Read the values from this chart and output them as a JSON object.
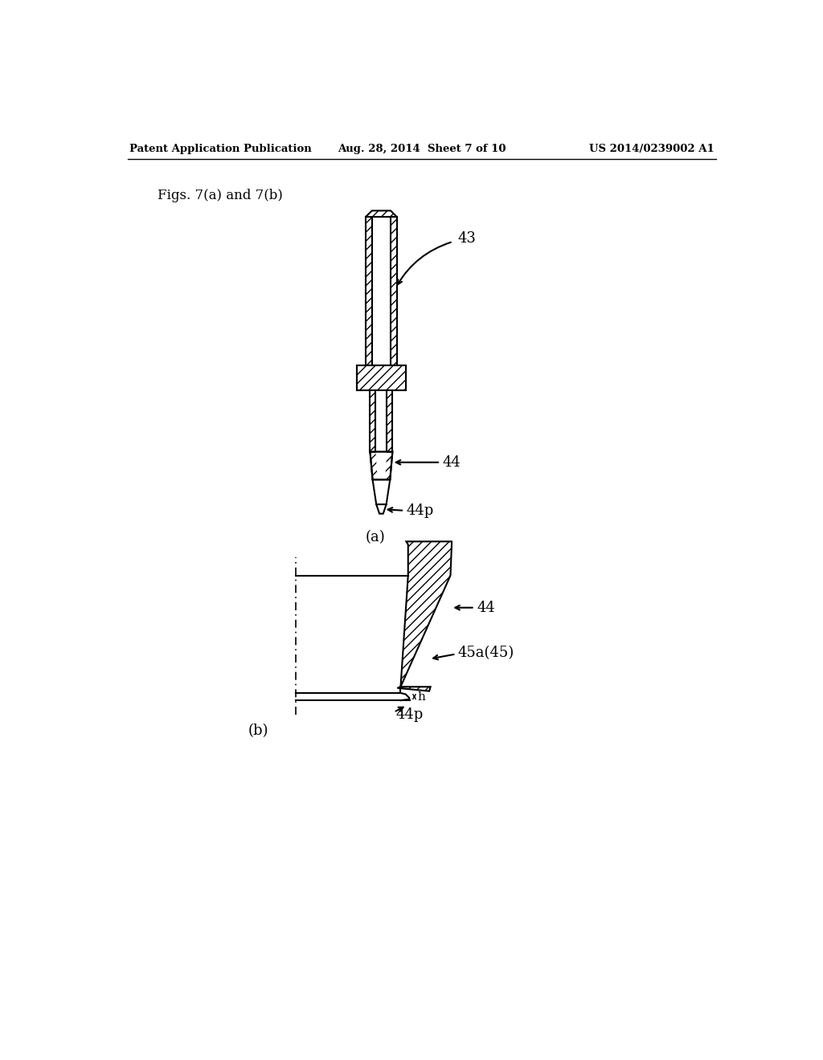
{
  "bg_color": "#ffffff",
  "header_left": "Patent Application Publication",
  "header_mid": "Aug. 28, 2014  Sheet 7 of 10",
  "header_right": "US 2014/0239002 A1",
  "fig_label": "Figs. 7(a) and 7(b)",
  "sub_label_a": "(a)",
  "sub_label_b": "(b)",
  "label_43": "43",
  "label_44a": "44",
  "label_44p_a": "44p",
  "label_44b": "44",
  "label_44p_b": "44p",
  "label_45a": "45a(45)",
  "label_h": "h",
  "line_color": "#000000"
}
